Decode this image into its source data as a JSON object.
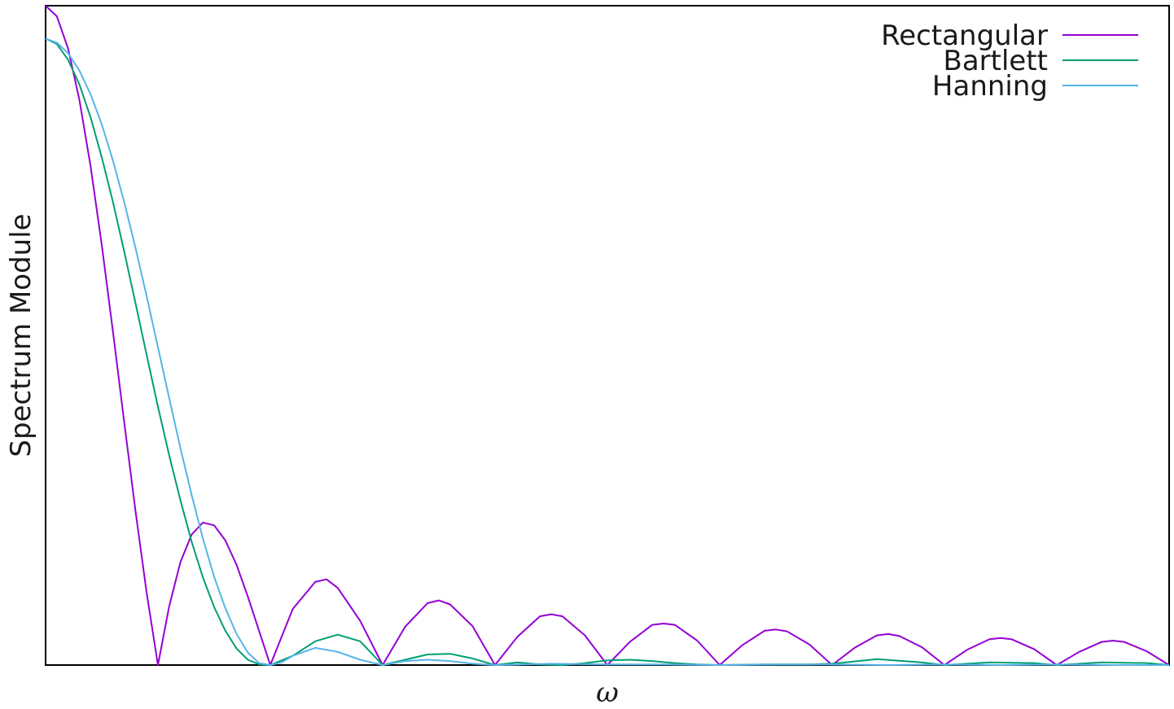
{
  "chart_data": {
    "type": "line",
    "title": "",
    "xlabel": "ω",
    "ylabel": "Spectrum Module",
    "xlim": [
      0,
      10
    ],
    "ylim": [
      0,
      1
    ],
    "grid": false,
    "x_ticks_shown": false,
    "y_ticks_shown": false,
    "legend_position": "top-right",
    "series": [
      {
        "name": "Rectangular",
        "color": "#9400d3",
        "x": [
          0,
          0.1,
          0.2,
          0.3,
          0.4,
          0.5,
          0.6,
          0.7,
          0.8,
          0.9,
          1.0,
          1.1,
          1.2,
          1.3,
          1.4,
          1.5,
          1.6,
          1.7,
          1.8,
          1.9,
          2.0,
          2.2,
          2.4,
          2.5,
          2.6,
          2.8,
          3.0,
          3.2,
          3.4,
          3.5,
          3.6,
          3.8,
          4.0,
          4.2,
          4.4,
          4.5,
          4.6,
          4.8,
          5.0,
          5.2,
          5.4,
          5.5,
          5.6,
          5.8,
          6.0,
          6.2,
          6.4,
          6.5,
          6.6,
          6.8,
          7.0,
          7.2,
          7.4,
          7.5,
          7.6,
          7.8,
          8.0,
          8.2,
          8.4,
          8.5,
          8.6,
          8.8,
          9.0,
          9.2,
          9.4,
          9.5,
          9.6,
          9.8,
          10.0
        ],
        "y": [
          1.0,
          0.984,
          0.935,
          0.858,
          0.757,
          0.637,
          0.505,
          0.368,
          0.234,
          0.109,
          0.0,
          0.089,
          0.156,
          0.198,
          0.216,
          0.212,
          0.189,
          0.152,
          0.104,
          0.052,
          0.0,
          0.085,
          0.126,
          0.13,
          0.117,
          0.067,
          0.0,
          0.058,
          0.094,
          0.098,
          0.092,
          0.059,
          0.0,
          0.043,
          0.074,
          0.077,
          0.074,
          0.045,
          0.0,
          0.035,
          0.061,
          0.063,
          0.061,
          0.037,
          0.0,
          0.03,
          0.052,
          0.054,
          0.051,
          0.031,
          0.0,
          0.026,
          0.045,
          0.047,
          0.044,
          0.027,
          0.0,
          0.023,
          0.039,
          0.041,
          0.039,
          0.024,
          0.0,
          0.02,
          0.035,
          0.037,
          0.035,
          0.021,
          0.0
        ]
      },
      {
        "name": "Bartlett",
        "color": "#009e73",
        "x": [
          0,
          0.1,
          0.2,
          0.3,
          0.4,
          0.5,
          0.6,
          0.7,
          0.8,
          0.9,
          1.0,
          1.1,
          1.2,
          1.3,
          1.4,
          1.5,
          1.6,
          1.7,
          1.8,
          1.9,
          2.0,
          2.2,
          2.4,
          2.6,
          2.8,
          3.0,
          3.2,
          3.4,
          3.6,
          3.8,
          4.0,
          4.2,
          4.4,
          4.6,
          4.8,
          5.0,
          5.2,
          5.4,
          5.6,
          5.8,
          6.0,
          6.4,
          6.8,
          7.0,
          7.4,
          7.8,
          8.0,
          8.4,
          8.8,
          9.0,
          9.4,
          9.8,
          10.0
        ],
        "y": [
          0.95,
          0.942,
          0.918,
          0.881,
          0.831,
          0.77,
          0.702,
          0.627,
          0.549,
          0.47,
          0.392,
          0.318,
          0.25,
          0.187,
          0.133,
          0.088,
          0.052,
          0.025,
          0.008,
          0.001,
          0.0,
          0.014,
          0.036,
          0.046,
          0.036,
          0.0,
          0.008,
          0.016,
          0.017,
          0.01,
          0.0,
          0.004,
          0.001,
          0.0,
          0.003,
          0.007,
          0.008,
          0.006,
          0.003,
          0.001,
          0.0,
          0.001,
          0.001,
          0.002,
          0.009,
          0.004,
          0.0,
          0.004,
          0.003,
          0.0,
          0.004,
          0.003,
          0.0
        ]
      },
      {
        "name": "Hanning",
        "color": "#56b4e9",
        "x": [
          0,
          0.1,
          0.2,
          0.3,
          0.4,
          0.5,
          0.6,
          0.7,
          0.8,
          0.9,
          1.0,
          1.1,
          1.2,
          1.3,
          1.4,
          1.5,
          1.6,
          1.7,
          1.8,
          1.9,
          2.0,
          2.1,
          2.2,
          2.4,
          2.6,
          2.8,
          3.0,
          3.2,
          3.4,
          3.6,
          3.8,
          4.0,
          4.5,
          5.0,
          5.5,
          6.0,
          6.5,
          7.0,
          7.5,
          8.0,
          8.5,
          9.0,
          9.5,
          10.0
        ],
        "y": [
          0.95,
          0.944,
          0.928,
          0.902,
          0.866,
          0.82,
          0.765,
          0.702,
          0.633,
          0.559,
          0.482,
          0.405,
          0.329,
          0.258,
          0.192,
          0.134,
          0.086,
          0.047,
          0.019,
          0.003,
          0.0,
          0.004,
          0.014,
          0.026,
          0.02,
          0.008,
          0.0,
          0.006,
          0.008,
          0.006,
          0.002,
          0.0,
          0.002,
          0.001,
          0.001,
          0.0,
          0.001,
          0.001,
          0.0,
          0.001,
          0.0,
          0.001,
          0.0,
          0.0
        ]
      }
    ]
  }
}
